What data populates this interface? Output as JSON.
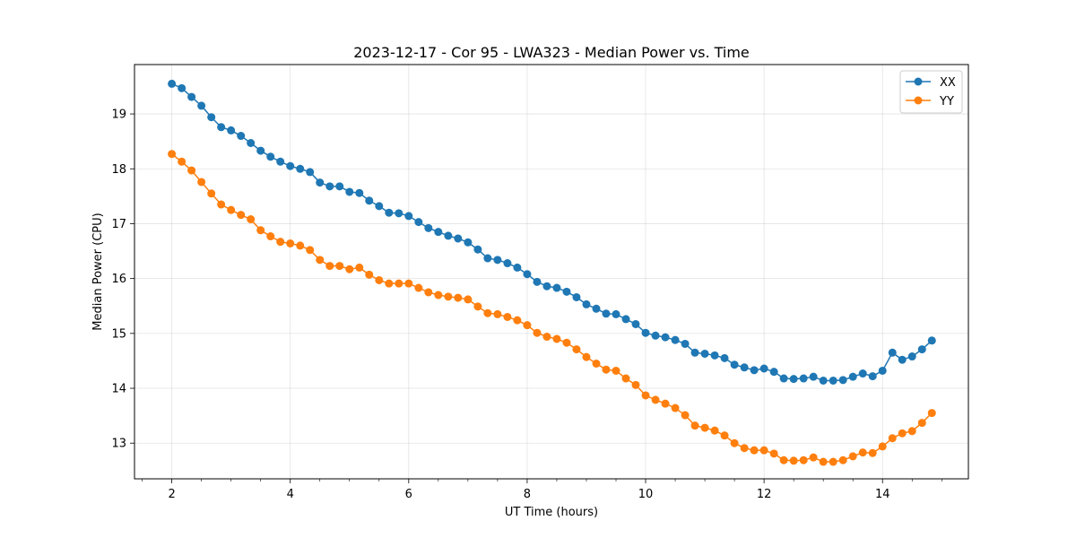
{
  "chart_data": {
    "type": "line",
    "title": "2023-12-17 - Cor 95 - LWA323 - Median Power vs. Time",
    "xlabel": "UT Time (hours)",
    "ylabel": "Median Power (CPU)",
    "xlim": [
      1.37,
      15.45
    ],
    "ylim": [
      12.35,
      19.9
    ],
    "xticks": [
      2,
      4,
      6,
      8,
      10,
      12,
      14
    ],
    "yticks": [
      13,
      14,
      15,
      16,
      17,
      18,
      19
    ],
    "grid": true,
    "legend_position": "top-right",
    "x": [
      2.0,
      2.167,
      2.333,
      2.5,
      2.667,
      2.833,
      3.0,
      3.167,
      3.333,
      3.5,
      3.667,
      3.833,
      4.0,
      4.167,
      4.333,
      4.5,
      4.667,
      4.833,
      5.0,
      5.167,
      5.333,
      5.5,
      5.667,
      5.833,
      6.0,
      6.167,
      6.333,
      6.5,
      6.667,
      6.833,
      7.0,
      7.167,
      7.333,
      7.5,
      7.667,
      7.833,
      8.0,
      8.167,
      8.333,
      8.5,
      8.667,
      8.833,
      9.0,
      9.167,
      9.333,
      9.5,
      9.667,
      9.833,
      10.0,
      10.167,
      10.333,
      10.5,
      10.667,
      10.833,
      11.0,
      11.167,
      11.333,
      11.5,
      11.667,
      11.833,
      12.0,
      12.167,
      12.333,
      12.5,
      12.667,
      12.833,
      13.0,
      13.167,
      13.333,
      13.5,
      13.667,
      13.833,
      14.0,
      14.167,
      14.333,
      14.5,
      14.667,
      14.833
    ],
    "series": [
      {
        "name": "XX",
        "color": "#1f77b4",
        "values": [
          19.55,
          19.47,
          19.31,
          19.15,
          18.94,
          18.76,
          18.7,
          18.6,
          18.47,
          18.33,
          18.22,
          18.13,
          18.05,
          18.0,
          17.94,
          17.75,
          17.68,
          17.68,
          17.58,
          17.56,
          17.42,
          17.32,
          17.2,
          17.19,
          17.14,
          17.03,
          16.92,
          16.85,
          16.78,
          16.73,
          16.66,
          16.53,
          16.37,
          16.34,
          16.28,
          16.2,
          16.08,
          15.94,
          15.86,
          15.83,
          15.76,
          15.66,
          15.53,
          15.45,
          15.36,
          15.35,
          15.26,
          15.17,
          15.01,
          14.96,
          14.93,
          14.88,
          14.81,
          14.65,
          14.63,
          14.6,
          14.55,
          14.43,
          14.38,
          14.33,
          14.36,
          14.3,
          14.18,
          14.17,
          14.18,
          14.21,
          14.14,
          14.14,
          14.15,
          14.21,
          14.27,
          14.22,
          14.32,
          14.65,
          14.52,
          14.58,
          14.71,
          14.87
        ]
      },
      {
        "name": "YY",
        "color": "#ff7f0e",
        "values": [
          18.27,
          18.13,
          17.97,
          17.76,
          17.55,
          17.35,
          17.25,
          17.16,
          17.08,
          16.88,
          16.77,
          16.67,
          16.64,
          16.6,
          16.52,
          16.34,
          16.23,
          16.23,
          16.17,
          16.2,
          16.07,
          15.97,
          15.91,
          15.91,
          15.91,
          15.83,
          15.75,
          15.7,
          15.67,
          15.65,
          15.62,
          15.49,
          15.37,
          15.35,
          15.3,
          15.24,
          15.15,
          15.01,
          14.94,
          14.9,
          14.83,
          14.71,
          14.57,
          14.45,
          14.34,
          14.32,
          14.18,
          14.06,
          13.87,
          13.79,
          13.72,
          13.64,
          13.51,
          13.32,
          13.28,
          13.23,
          13.14,
          13.0,
          12.91,
          12.87,
          12.87,
          12.81,
          12.69,
          12.68,
          12.69,
          12.74,
          12.66,
          12.66,
          12.69,
          12.76,
          12.83,
          12.82,
          12.94,
          13.09,
          13.18,
          13.22,
          13.37,
          13.55
        ]
      }
    ]
  }
}
